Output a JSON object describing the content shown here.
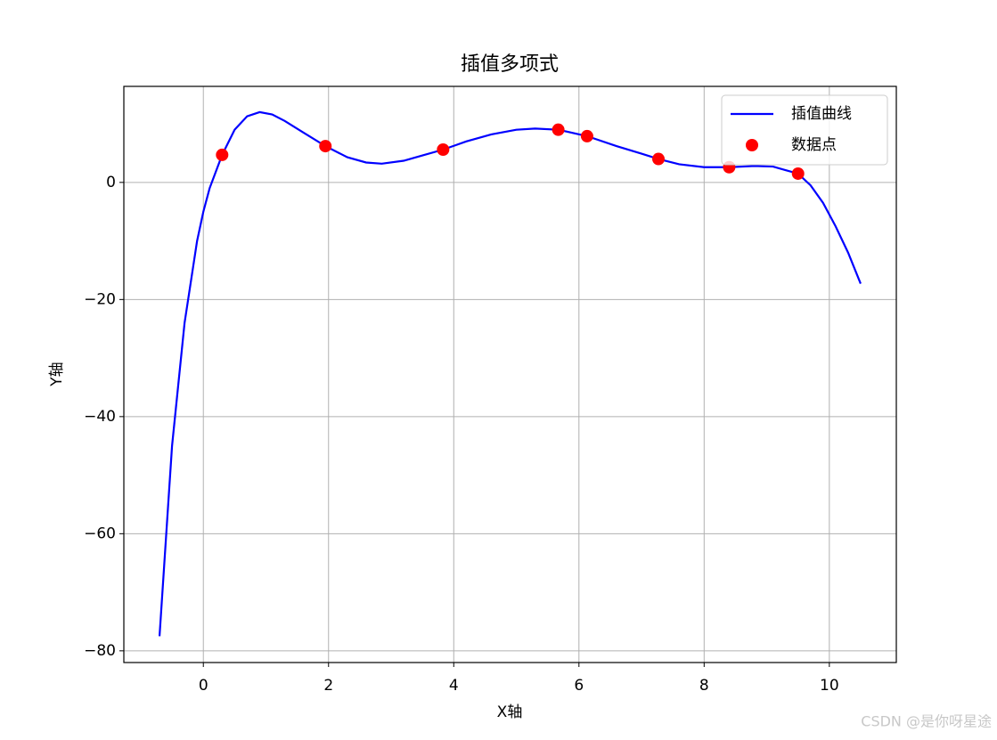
{
  "chart_data": {
    "type": "line",
    "title": "插值多项式",
    "x_label": "X轴",
    "y_label": "Y轴",
    "xlim": [
      -1.27,
      11.07
    ],
    "ylim": [
      -82.0,
      16.4
    ],
    "xticks": [
      0,
      2,
      4,
      6,
      8,
      10
    ],
    "yticks": [
      {
        "value": -80,
        "label": "−80"
      },
      {
        "value": -60,
        "label": "−60"
      },
      {
        "value": -40,
        "label": "−40"
      },
      {
        "value": -20,
        "label": "−20"
      },
      0
    ],
    "grid": true,
    "legend": "upper right",
    "series": [
      {
        "name": "插值曲线",
        "type": "line",
        "color": "#0000ff",
        "x": [
          -0.7,
          -0.5,
          -0.3,
          -0.1,
          0,
          0.1,
          0.3,
          0.5,
          0.7,
          0.9,
          1.1,
          1.3,
          1.6,
          1.95,
          2.3,
          2.6,
          2.85,
          3.2,
          3.5,
          3.83,
          4.2,
          4.6,
          5.0,
          5.3,
          5.67,
          6.13,
          6.6,
          7.0,
          7.27,
          7.6,
          8.0,
          8.4,
          8.8,
          9.1,
          9.3,
          9.5,
          9.7,
          9.9,
          10.1,
          10.3,
          10.5
        ],
        "values": [
          -77.5,
          -45,
          -24,
          -10,
          -5,
          -1,
          4.7,
          9,
          11.3,
          12,
          11.6,
          10.5,
          8.5,
          6.2,
          4.3,
          3.4,
          3.2,
          3.7,
          4.6,
          5.6,
          7,
          8.2,
          9.0,
          9.2,
          9.0,
          7.9,
          6.2,
          4.9,
          4.0,
          3.1,
          2.6,
          2.6,
          2.8,
          2.7,
          2.1,
          1.5,
          -0.5,
          -3.5,
          -7.5,
          -12,
          -17.3
        ]
      },
      {
        "name": "数据点",
        "type": "scatter",
        "color": "#ff0000",
        "x": [
          0.3,
          1.95,
          3.83,
          5.67,
          6.13,
          7.27,
          8.4,
          9.5
        ],
        "values": [
          4.7,
          6.2,
          5.6,
          9.0,
          7.9,
          4.0,
          2.6,
          1.5
        ]
      }
    ]
  },
  "watermark": "CSDN @是你呀星途"
}
